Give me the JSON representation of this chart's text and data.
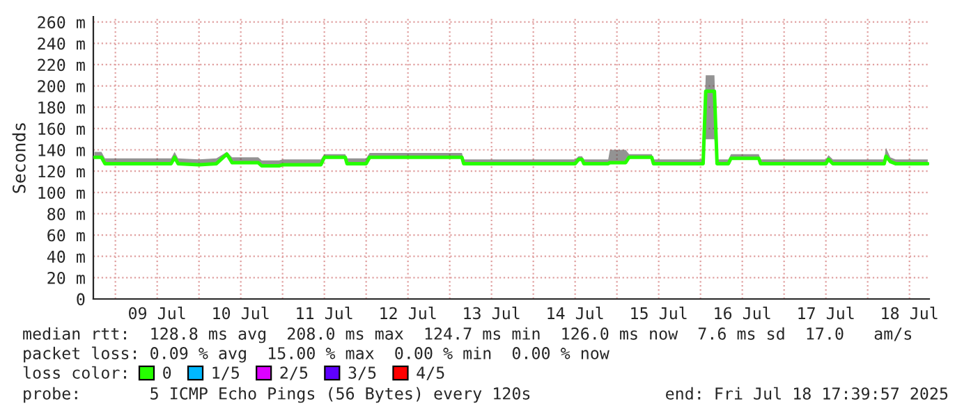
{
  "chart_data": {
    "type": "line",
    "ylabel": "Seconds",
    "legend_title": "loss color:",
    "legend": "bottom",
    "grid": true,
    "marker": "none",
    "line_style": "solid",
    "xlim": [
      "2025-07-08T17:40",
      "2025-07-18T17:40"
    ],
    "xticks": [
      {
        "value": "2025-07-09T00:00",
        "label": null
      },
      {
        "value": "2025-07-09T12:00",
        "label": "09 Jul"
      },
      {
        "value": "2025-07-10T00:00",
        "label": null
      },
      {
        "value": "2025-07-10T12:00",
        "label": "10 Jul"
      },
      {
        "value": "2025-07-11T00:00",
        "label": null
      },
      {
        "value": "2025-07-11T12:00",
        "label": "11 Jul"
      },
      {
        "value": "2025-07-12T00:00",
        "label": null
      },
      {
        "value": "2025-07-12T12:00",
        "label": "12 Jul"
      },
      {
        "value": "2025-07-13T00:00",
        "label": null
      },
      {
        "value": "2025-07-13T12:00",
        "label": "13 Jul"
      },
      {
        "value": "2025-07-14T00:00",
        "label": null
      },
      {
        "value": "2025-07-14T12:00",
        "label": "14 Jul"
      },
      {
        "value": "2025-07-15T00:00",
        "label": null
      },
      {
        "value": "2025-07-15T12:00",
        "label": "15 Jul"
      },
      {
        "value": "2025-07-16T00:00",
        "label": null
      },
      {
        "value": "2025-07-16T12:00",
        "label": "16 Jul"
      },
      {
        "value": "2025-07-17T00:00",
        "label": null
      },
      {
        "value": "2025-07-17T12:00",
        "label": "17 Jul"
      },
      {
        "value": "2025-07-18T00:00",
        "label": null
      },
      {
        "value": "2025-07-18T12:00",
        "label": "18 Jul"
      }
    ],
    "ylim": [
      0,
      265
    ],
    "yticks": [
      {
        "value": 0,
        "label": "0"
      },
      {
        "value": 20,
        "label": "20 m"
      },
      {
        "value": 40,
        "label": "40 m"
      },
      {
        "value": 60,
        "label": "60 m"
      },
      {
        "value": 80,
        "label": "80 m"
      },
      {
        "value": 100,
        "label": "100 m"
      },
      {
        "value": 120,
        "label": "120 m"
      },
      {
        "value": 140,
        "label": "140 m"
      },
      {
        "value": 160,
        "label": "160 m"
      },
      {
        "value": 180,
        "label": "180 m"
      },
      {
        "value": 200,
        "label": "200 m"
      },
      {
        "value": 220,
        "label": "220 m"
      },
      {
        "value": 240,
        "label": "240 m"
      },
      {
        "value": 260,
        "label": "260 m"
      }
    ],
    "series": [
      {
        "name": "0",
        "color": "#26ff00",
        "x": [
          "2025-07-08T18:00",
          "2025-07-08T20:00",
          "2025-07-08T21:00",
          "2025-07-09T16:00",
          "2025-07-09T17:00",
          "2025-07-09T18:00",
          "2025-07-10T00:00",
          "2025-07-10T05:00",
          "2025-07-10T08:00",
          "2025-07-10T09:30",
          "2025-07-10T17:00",
          "2025-07-10T18:00",
          "2025-07-10T23:00",
          "2025-07-11T00:00",
          "2025-07-11T11:00",
          "2025-07-11T12:00",
          "2025-07-11T18:00",
          "2025-07-11T18:30",
          "2025-07-12T00:00",
          "2025-07-12T01:00",
          "2025-07-13T03:30",
          "2025-07-13T04:00",
          "2025-07-14T12:00",
          "2025-07-14T13:00",
          "2025-07-14T14:00",
          "2025-07-14T14:30",
          "2025-07-14T21:30",
          "2025-07-14T22:00",
          "2025-07-15T02:30",
          "2025-07-15T03:30",
          "2025-07-15T10:00",
          "2025-07-15T10:30",
          "2025-07-16T00:45",
          "2025-07-16T01:30",
          "2025-07-16T04:00",
          "2025-07-16T04:45",
          "2025-07-16T08:00",
          "2025-07-16T08:45",
          "2025-07-16T16:45",
          "2025-07-16T17:15",
          "2025-07-17T12:00",
          "2025-07-17T12:45",
          "2025-07-17T14:00",
          "2025-07-18T04:45",
          "2025-07-18T05:15",
          "2025-07-18T06:30",
          "2025-07-18T08:00",
          "2025-07-18T17:15"
        ],
        "values": [
          133,
          133,
          127,
          127,
          133,
          127,
          126,
          127,
          136,
          128,
          128,
          125,
          125,
          126,
          126,
          133,
          133,
          127,
          127,
          133,
          133,
          127,
          127,
          131,
          131,
          127,
          127,
          128,
          128,
          133,
          133,
          127,
          127,
          195,
          195,
          127,
          127,
          132,
          132,
          127,
          127,
          131,
          127,
          127,
          134,
          129,
          127,
          127
        ],
        "lower": [
          132,
          132,
          126,
          126,
          132,
          126,
          125,
          126,
          135,
          127,
          127,
          124,
          124,
          125,
          125,
          132,
          132,
          126,
          126,
          132,
          132,
          126,
          126,
          130,
          130,
          126,
          126,
          127,
          127,
          132,
          132,
          126,
          126,
          150,
          150,
          126,
          126,
          131,
          131,
          126,
          126,
          130,
          126,
          126,
          133,
          128,
          126,
          126
        ],
        "upper": [
          138,
          138,
          132,
          132,
          138,
          132,
          131,
          132,
          138,
          133,
          133,
          130,
          130,
          131,
          131,
          136,
          136,
          132,
          132,
          137,
          137,
          131,
          131,
          134,
          134,
          131,
          131,
          140,
          140,
          136,
          136,
          131,
          131,
          210,
          210,
          131,
          131,
          136,
          136,
          131,
          131,
          135,
          131,
          131,
          142,
          133,
          131,
          131
        ]
      },
      {
        "name": "1/5",
        "color": "#00b8ff"
      },
      {
        "name": "2/5",
        "color": "#dd00ff"
      },
      {
        "name": "3/5",
        "color": "#5e00ff"
      },
      {
        "name": "4/5",
        "color": "#ff0000"
      }
    ],
    "annotations": [
      "median rtt:  128.8 ms avg  208.0 ms max  124.7 ms min  126.0 ms now  7.6 ms sd  17.0   am/s",
      "packet loss: 0.09 % avg  15.00 % max  0.00 % min  0.00 % now",
      "probe:       5 ICMP Echo Pings (56 Bytes) every 120s",
      "end: Fri Jul 18 17:39:57 2025"
    ]
  }
}
